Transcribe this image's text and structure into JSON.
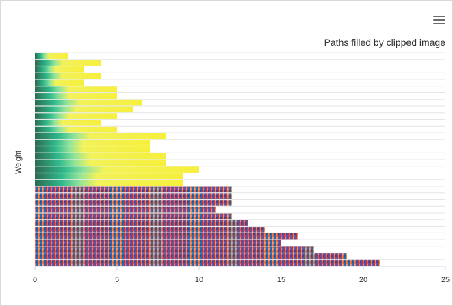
{
  "menu": {
    "icon": "hamburger-menu-icon"
  },
  "chart_data": {
    "type": "bar",
    "orientation": "horizontal",
    "title": "Paths filled by clipped image",
    "xlabel": "",
    "ylabel": "Weight",
    "xlim": [
      0,
      25
    ],
    "x_ticks": [
      "0",
      "5",
      "10",
      "15",
      "20",
      "25"
    ],
    "grid": true,
    "values": [
      2,
      4,
      3,
      4,
      3,
      5,
      5,
      6.5,
      6,
      5,
      4,
      5,
      8,
      7,
      7,
      8,
      8,
      10,
      9,
      9,
      12,
      12,
      12,
      11,
      12,
      13,
      14,
      16,
      15,
      17,
      19,
      21
    ]
  }
}
